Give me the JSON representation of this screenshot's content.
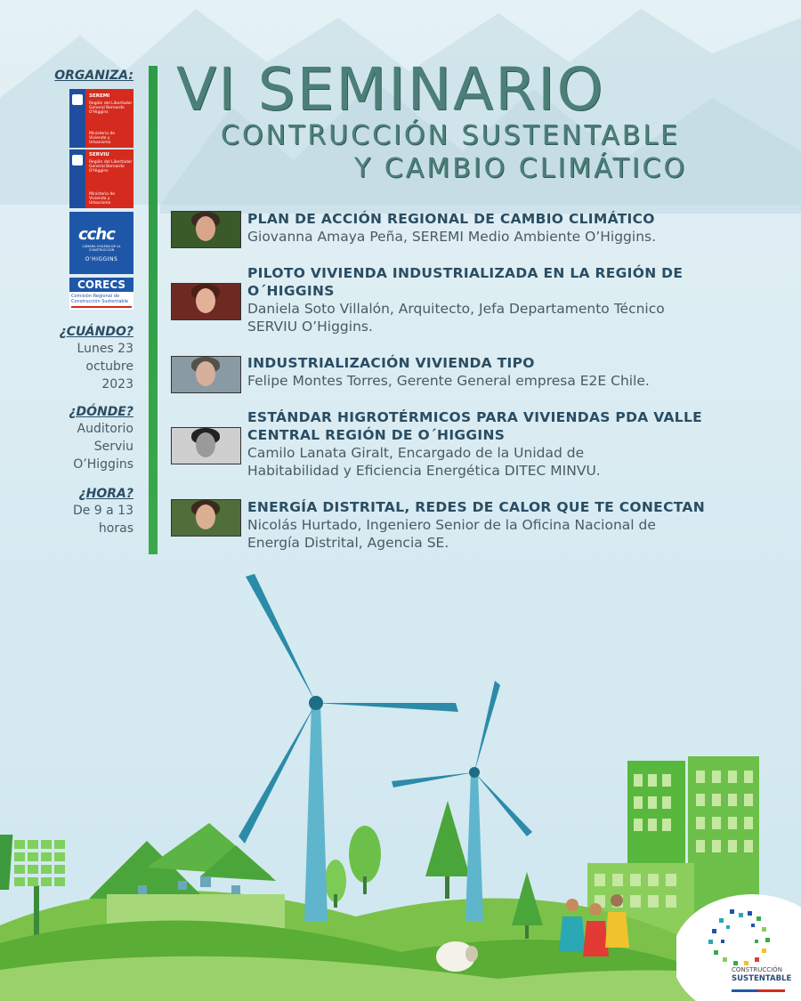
{
  "title": {
    "main": "VI SEMINARIO",
    "sub1": "CONTRUCCIÓN SUSTENTABLE",
    "sub2": "Y CAMBIO CLIMÁTICO"
  },
  "sidebar": {
    "organiza": "ORGANIZA:",
    "cuando_label": "¿CUÁNDO?",
    "cuando_lines": [
      "Lunes 23",
      "octubre",
      "2023"
    ],
    "donde_label": "¿DÓNDE?",
    "donde_lines": [
      "Auditorio",
      "Serviu",
      "O’Higgins"
    ],
    "hora_label": "¿HORA?",
    "hora_lines": [
      "De 9 a 13",
      "horas"
    ]
  },
  "logos": {
    "seremi": {
      "name": "SEREMI",
      "lines": [
        "Región del Libertador",
        "General Bernardo",
        "O'Higgins"
      ],
      "ministry": [
        "Ministerio de",
        "Vivienda y",
        "Urbanismo"
      ]
    },
    "serviu": {
      "name": "SERVIU",
      "lines": [
        "Región del Libertador",
        "General Bernardo",
        "O'Higgins"
      ],
      "ministry": [
        "Ministerio de",
        "Vivienda y",
        "Urbanismo"
      ]
    },
    "cchc": {
      "name": "cchc",
      "tagline": "CÁMARA CHILENA DE LA CONSTRUCCIÓN",
      "region": "O'HIGGINS"
    },
    "corecs": {
      "name": "CORECS",
      "lines": [
        "Comisión Regional de",
        "Construcción Sustentable"
      ]
    },
    "construccion_sustentable": {
      "line1": "CONSTRUCCIÓN",
      "line2": "SUSTENTABLE"
    }
  },
  "talks": [
    {
      "title_lines": [
        "PLAN DE ACCIÓN REGIONAL DE CAMBIO CLIMÁTICO"
      ],
      "speaker_lines": [
        "Giovanna Amaya Peña, SEREMI Medio Ambiente O’Higgins."
      ]
    },
    {
      "title_lines": [
        "PILOTO VIVIENDA INDUSTRIALIZADA EN LA REGIÓN DE",
        "O´HIGGINS"
      ],
      "speaker_lines": [
        "Daniela Soto Villalón, Arquitecto, Jefa Departamento Técnico",
        "SERVIU O’Higgins."
      ]
    },
    {
      "title_lines": [
        "INDUSTRIALIZACIÓN VIVIENDA TIPO"
      ],
      "speaker_lines": [
        "Felipe Montes Torres, Gerente General empresa E2E Chile."
      ]
    },
    {
      "title_lines": [
        "ESTÁNDAR HIGROTÉRMICOS PARA VIVIENDAS PDA VALLE",
        "CENTRAL REGIÓN DE O´HIGGINS"
      ],
      "speaker_lines": [
        "Camilo Lanata Giralt, Encargado de la Unidad de",
        "Habitabilidad y Eficiencia Energética DITEC MINVU."
      ]
    },
    {
      "title_lines": [
        "ENERGÍA DISTRITAL, REDES DE CALOR QUE TE CONECTAN"
      ],
      "speaker_lines": [
        "Nicolás Hurtado, Ingeniero Senior de la Oficina Nacional de",
        "Energía Distrital, Agencia SE."
      ]
    }
  ]
}
